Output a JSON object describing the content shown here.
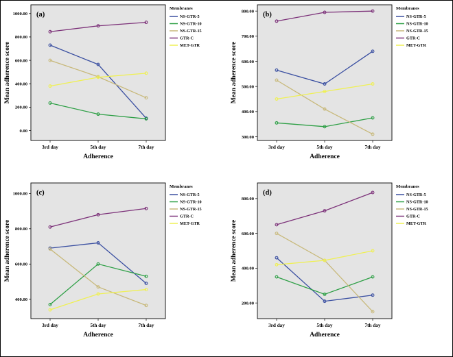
{
  "style": {
    "plot_bg": "#e4e4e4",
    "plot_border": "#000000",
    "text_color": "#000000"
  },
  "chart_data": [
    {
      "type": "line",
      "panel_label": "(a)",
      "xlabel": "Adherence",
      "ylabel": "Mean adherence score",
      "legend_title": "Membranes",
      "categories": [
        "3rd day",
        "5th day",
        "7th day"
      ],
      "ylim": [
        -85,
        1075
      ],
      "yticks": [
        0,
        200,
        400,
        600,
        800,
        1000
      ],
      "grid": false,
      "legend_position": "right",
      "series": [
        {
          "name": "NS-GTR-5",
          "color": "#3a4fa1",
          "values": [
            730,
            565,
            105
          ]
        },
        {
          "name": "NS-GTR-10",
          "color": "#2d9f45",
          "values": [
            235,
            140,
            100
          ]
        },
        {
          "name": "NS-GTR-15",
          "color": "#c8b97b",
          "values": [
            600,
            460,
            280
          ]
        },
        {
          "name": "GTR-C",
          "color": "#7c3179",
          "values": [
            845,
            895,
            925
          ]
        },
        {
          "name": "MET-GTR",
          "color": "#eff054",
          "values": [
            380,
            455,
            490
          ]
        }
      ]
    },
    {
      "type": "line",
      "panel_label": "(b)",
      "xlabel": "Adherence",
      "ylabel": "Mean adherence score",
      "legend_title": "Membranes",
      "categories": [
        "3rd day",
        "5th day",
        "7th day"
      ],
      "ylim": [
        285,
        825
      ],
      "yticks": [
        300,
        400,
        500,
        600,
        700,
        800
      ],
      "grid": false,
      "legend_position": "right",
      "series": [
        {
          "name": "NS-GTR-5",
          "color": "#3a4fa1",
          "values": [
            565,
            510,
            640
          ]
        },
        {
          "name": "NS-GTR-10",
          "color": "#2d9f45",
          "values": [
            355,
            340,
            375
          ]
        },
        {
          "name": "NS-GTR-15",
          "color": "#c8b97b",
          "values": [
            525,
            410,
            310
          ]
        },
        {
          "name": "GTR-C",
          "color": "#7c3179",
          "values": [
            760,
            795,
            800
          ]
        },
        {
          "name": "MET-GTR",
          "color": "#eff054",
          "values": [
            450,
            480,
            510
          ]
        }
      ]
    },
    {
      "type": "line",
      "panel_label": "(c)",
      "xlabel": "Adherence",
      "ylabel": "Mean adherence score",
      "legend_title": "Membranes",
      "categories": [
        "3rd day",
        "5th day",
        "7th day"
      ],
      "ylim": [
        290,
        1060
      ],
      "yticks": [
        400,
        600,
        800,
        1000
      ],
      "grid": false,
      "legend_position": "right",
      "series": [
        {
          "name": "NS-GTR-5",
          "color": "#3a4fa1",
          "values": [
            690,
            720,
            490
          ]
        },
        {
          "name": "NS-GTR-10",
          "color": "#2d9f45",
          "values": [
            370,
            600,
            530
          ]
        },
        {
          "name": "NS-GTR-15",
          "color": "#c8b97b",
          "values": [
            685,
            470,
            365
          ]
        },
        {
          "name": "GTR-C",
          "color": "#7c3179",
          "values": [
            810,
            880,
            915
          ]
        },
        {
          "name": "MET-GTR",
          "color": "#eff054",
          "values": [
            340,
            430,
            455
          ]
        }
      ]
    },
    {
      "type": "line",
      "panel_label": "(d)",
      "xlabel": "Adherence",
      "ylabel": "Mean adherence score",
      "legend_title": "Membranes",
      "categories": [
        "3rd day",
        "5th day",
        "7th day"
      ],
      "ylim": [
        110,
        890
      ],
      "yticks": [
        200,
        400,
        600,
        800
      ],
      "grid": false,
      "legend_position": "right",
      "series": [
        {
          "name": "NS-GTR-5",
          "color": "#3a4fa1",
          "values": [
            460,
            210,
            245
          ]
        },
        {
          "name": "NS-GTR-10",
          "color": "#2d9f45",
          "values": [
            350,
            250,
            350
          ]
        },
        {
          "name": "NS-GTR-15",
          "color": "#c8b97b",
          "values": [
            600,
            445,
            150
          ]
        },
        {
          "name": "GTR-C",
          "color": "#7c3179",
          "values": [
            650,
            730,
            835
          ]
        },
        {
          "name": "MET-GTR",
          "color": "#eff054",
          "values": [
            420,
            445,
            500
          ]
        }
      ]
    }
  ]
}
